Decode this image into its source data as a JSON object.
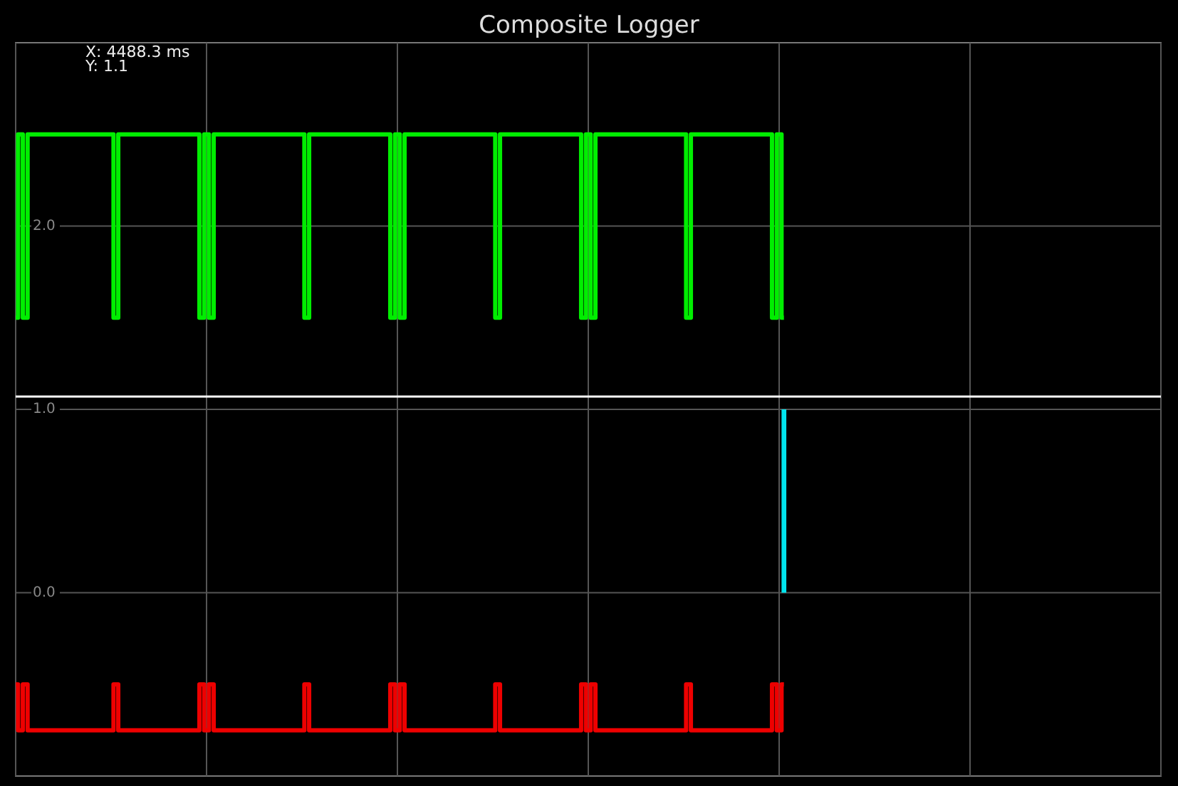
{
  "chart_data": {
    "type": "step",
    "title": "Composite Logger",
    "annotations": [
      "X: 4488.3 ms",
      "Y: 1.1"
    ],
    "categories": [
      null,
      null,
      null,
      null,
      null,
      null,
      null,
      null,
      null,
      null,
      null,
      null,
      null,
      null,
      null,
      null,
      null,
      null,
      null,
      null,
      null,
      null,
      null,
      null,
      null,
      null,
      null,
      null,
      null,
      null,
      null,
      null,
      null,
      null,
      null,
      null,
      null,
      null,
      null,
      null,
      null,
      null,
      null,
      null,
      null,
      null,
      null,
      null,
      null,
      null,
      null,
      null,
      null,
      null,
      null,
      null,
      null,
      null,
      null,
      null,
      null,
      null,
      null,
      null,
      null,
      null,
      null,
      null,
      null,
      null,
      null,
      null,
      null,
      null,
      null,
      null,
      null,
      null,
      null,
      null,
      null,
      null,
      null,
      null,
      null,
      null,
      null,
      null,
      null,
      null,
      null,
      null,
      null,
      null,
      null,
      null,
      null,
      null,
      null,
      null,
      null,
      null,
      null,
      null,
      null,
      null,
      null,
      null,
      null,
      null,
      null,
      null,
      null,
      null,
      null,
      null,
      null,
      null,
      null,
      null,
      null,
      null,
      null,
      null,
      null,
      null,
      null,
      null,
      null,
      null,
      null,
      null,
      null,
      null,
      null,
      null,
      null,
      null,
      null,
      null,
      null,
      null,
      null,
      null,
      null,
      null,
      null,
      null,
      null,
      null,
      null,
      null,
      null,
      null,
      null,
      null,
      null,
      null,
      null,
      null,
      null,
      null
    ],
    "ylim": [
      -1,
      3
    ],
    "yticks": [
      {
        "value": 0,
        "label": "0.0"
      },
      {
        "value": 1,
        "label": "1.0"
      },
      {
        "value": 2,
        "label": "2.0"
      }
    ],
    "tick_labels": "y",
    "grid": true,
    "line_style": "solid",
    "ref_lines": [
      {
        "axis": "y",
        "value": 1.07,
        "color": "#ffffff"
      }
    ],
    "series": [
      {
        "color": "#00ee00",
        "values": [
          1.5,
          2.5,
          1.5,
          2.5,
          2.5,
          2.5,
          2.5,
          2.5,
          2.5,
          2.5,
          2.5,
          2.5,
          2.5,
          2.5,
          2.5,
          2.5,
          2.5,
          2.5,
          2.5,
          2.5,
          2.5,
          1.5,
          2.5,
          2.5,
          2.5,
          2.5,
          2.5,
          2.5,
          2.5,
          2.5,
          2.5,
          2.5,
          2.5,
          2.5,
          2.5,
          2.5,
          2.5,
          2.5,
          2.5,
          1.5,
          2.5,
          1.5,
          2.5,
          2.5,
          2.5,
          2.5,
          2.5,
          2.5,
          2.5,
          2.5,
          2.5,
          2.5,
          2.5,
          2.5,
          2.5,
          2.5,
          2.5,
          2.5,
          2.5,
          2.5,
          2.5,
          1.5,
          2.5,
          2.5,
          2.5,
          2.5,
          2.5,
          2.5,
          2.5,
          2.5,
          2.5,
          2.5,
          2.5,
          2.5,
          2.5,
          2.5,
          2.5,
          2.5,
          2.5,
          1.5,
          2.5,
          1.5,
          2.5,
          2.5,
          2.5,
          2.5,
          2.5,
          2.5,
          2.5,
          2.5,
          2.5,
          2.5,
          2.5,
          2.5,
          2.5,
          2.5,
          2.5,
          2.5,
          2.5,
          2.5,
          2.5,
          1.5,
          2.5,
          2.5,
          2.5,
          2.5,
          2.5,
          2.5,
          2.5,
          2.5,
          2.5,
          2.5,
          2.5,
          2.5,
          2.5,
          2.5,
          2.5,
          2.5,
          2.5,
          1.5,
          2.5,
          1.5,
          2.5,
          2.5,
          2.5,
          2.5,
          2.5,
          2.5,
          2.5,
          2.5,
          2.5,
          2.5,
          2.5,
          2.5,
          2.5,
          2.5,
          2.5,
          2.5,
          2.5,
          2.5,
          2.5,
          1.5,
          2.5,
          2.5,
          2.5,
          2.5,
          2.5,
          2.5,
          2.5,
          2.5,
          2.5,
          2.5,
          2.5,
          2.5,
          2.5,
          2.5,
          2.5,
          2.5,
          2.5,
          1.5,
          2.5,
          1.5
        ]
      },
      {
        "type": "bar",
        "color": "#00e5ee",
        "values": [
          null,
          null,
          null,
          null,
          null,
          null,
          null,
          null,
          null,
          null,
          null,
          null,
          null,
          null,
          null,
          null,
          null,
          null,
          null,
          null,
          null,
          null,
          null,
          null,
          null,
          null,
          null,
          null,
          null,
          null,
          null,
          null,
          null,
          null,
          null,
          null,
          null,
          null,
          null,
          null,
          null,
          null,
          null,
          null,
          null,
          null,
          null,
          null,
          null,
          null,
          null,
          null,
          null,
          null,
          null,
          null,
          null,
          null,
          null,
          null,
          null,
          null,
          null,
          null,
          null,
          null,
          null,
          null,
          null,
          null,
          null,
          null,
          null,
          null,
          null,
          null,
          null,
          null,
          null,
          null,
          null,
          null,
          null,
          null,
          null,
          null,
          null,
          null,
          null,
          null,
          null,
          null,
          null,
          null,
          null,
          null,
          null,
          null,
          null,
          null,
          null,
          null,
          null,
          null,
          null,
          null,
          null,
          null,
          null,
          null,
          null,
          null,
          null,
          null,
          null,
          null,
          null,
          null,
          null,
          null,
          null,
          null,
          null,
          null,
          null,
          null,
          null,
          null,
          null,
          null,
          null,
          null,
          null,
          null,
          null,
          null,
          null,
          null,
          null,
          null,
          null,
          null,
          null,
          null,
          null,
          null,
          null,
          null,
          null,
          null,
          null,
          null,
          null,
          null,
          null,
          null,
          null,
          null,
          null,
          null,
          null,
          1
        ]
      },
      {
        "color": "#ee0000",
        "values": [
          -0.5,
          -0.75,
          -0.5,
          -0.75,
          -0.75,
          -0.75,
          -0.75,
          -0.75,
          -0.75,
          -0.75,
          -0.75,
          -0.75,
          -0.75,
          -0.75,
          -0.75,
          -0.75,
          -0.75,
          -0.75,
          -0.75,
          -0.75,
          -0.75,
          -0.5,
          -0.75,
          -0.75,
          -0.75,
          -0.75,
          -0.75,
          -0.75,
          -0.75,
          -0.75,
          -0.75,
          -0.75,
          -0.75,
          -0.75,
          -0.75,
          -0.75,
          -0.75,
          -0.75,
          -0.75,
          -0.5,
          -0.75,
          -0.5,
          -0.75,
          -0.75,
          -0.75,
          -0.75,
          -0.75,
          -0.75,
          -0.75,
          -0.75,
          -0.75,
          -0.75,
          -0.75,
          -0.75,
          -0.75,
          -0.75,
          -0.75,
          -0.75,
          -0.75,
          -0.75,
          -0.75,
          -0.5,
          -0.75,
          -0.75,
          -0.75,
          -0.75,
          -0.75,
          -0.75,
          -0.75,
          -0.75,
          -0.75,
          -0.75,
          -0.75,
          -0.75,
          -0.75,
          -0.75,
          -0.75,
          -0.75,
          -0.75,
          -0.5,
          -0.75,
          -0.5,
          -0.75,
          -0.75,
          -0.75,
          -0.75,
          -0.75,
          -0.75,
          -0.75,
          -0.75,
          -0.75,
          -0.75,
          -0.75,
          -0.75,
          -0.75,
          -0.75,
          -0.75,
          -0.75,
          -0.75,
          -0.75,
          -0.75,
          -0.5,
          -0.75,
          -0.75,
          -0.75,
          -0.75,
          -0.75,
          -0.75,
          -0.75,
          -0.75,
          -0.75,
          -0.75,
          -0.75,
          -0.75,
          -0.75,
          -0.75,
          -0.75,
          -0.75,
          -0.75,
          -0.5,
          -0.75,
          -0.5,
          -0.75,
          -0.75,
          -0.75,
          -0.75,
          -0.75,
          -0.75,
          -0.75,
          -0.75,
          -0.75,
          -0.75,
          -0.75,
          -0.75,
          -0.75,
          -0.75,
          -0.75,
          -0.75,
          -0.75,
          -0.75,
          -0.75,
          -0.5,
          -0.75,
          -0.75,
          -0.75,
          -0.75,
          -0.75,
          -0.75,
          -0.75,
          -0.75,
          -0.75,
          -0.75,
          -0.75,
          -0.75,
          -0.75,
          -0.75,
          -0.75,
          -0.75,
          -0.75,
          -0.5,
          -0.75,
          -0.5
        ]
      }
    ]
  }
}
